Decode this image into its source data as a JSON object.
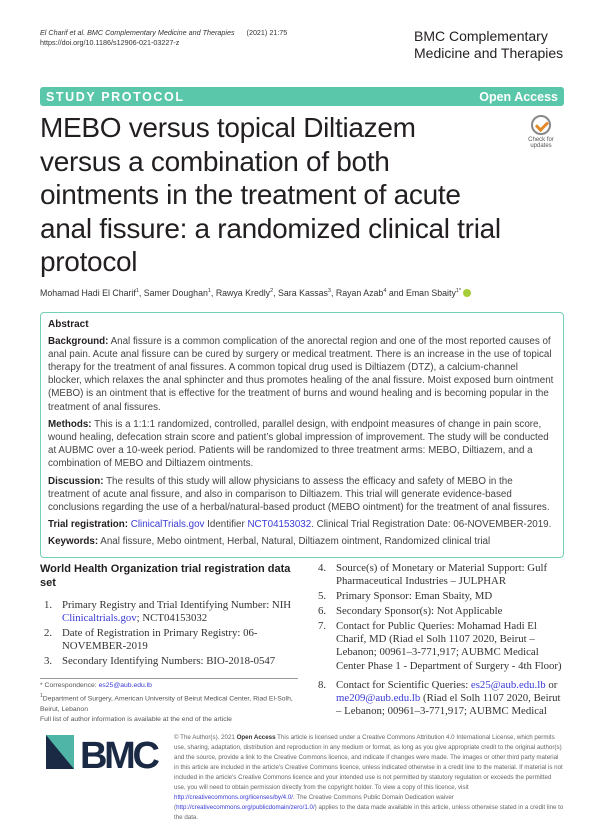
{
  "header": {
    "citation_authors": "El Charif et al.",
    "citation_journal": "BMC Complementary Medicine and Therapies",
    "citation_year": "(2021) 21:75",
    "doi": "https://doi.org/10.1186/s12906-021-03227-z",
    "journal_line1": "BMC Complementary",
    "journal_line2": "Medicine and Therapies"
  },
  "banner": {
    "type": "STUDY PROTOCOL",
    "access": "Open Access",
    "color": "#5ac7aa"
  },
  "check_updates": "Check for updates",
  "title": "MEBO versus topical Diltiazem versus a combination of both ointments in the treatment of acute anal fissure: a randomized clinical trial protocol",
  "authors": [
    {
      "name": "Mohamad Hadi El Charif",
      "aff": "1"
    },
    {
      "name": "Samer Doughan",
      "aff": "1"
    },
    {
      "name": "Rawya Kredly",
      "aff": "2"
    },
    {
      "name": "Sara Kassas",
      "aff": "3"
    },
    {
      "name": "Rayan Azab",
      "aff": "4"
    },
    {
      "name": "Eman Sbaity",
      "aff": "1*"
    }
  ],
  "authors_and": "and",
  "abstract": {
    "heading": "Abstract",
    "background_label": "Background:",
    "background": "Anal fissure is a common complication of the anorectal region and one of the most reported causes of anal pain. Acute anal fissure can be cured by surgery or medical treatment. There is an increase in the use of topical therapy for the treatment of anal fissures. A common topical drug used is Diltiazem (DTZ), a calcium-channel blocker, which relaxes the anal sphincter and thus promotes healing of the anal fissure. Moist exposed burn ointment (MEBO) is an ointment that is effective for the treatment of burns and wound healing and is becoming popular in the treatment of anal fissures.",
    "methods_label": "Methods:",
    "methods": "This is a 1:1:1 randomized, controlled, parallel design, with endpoint measures of change in pain score, wound healing, defecation strain score and patient’s global impression of improvement. The study will be conducted at AUBMC over a 10-week period. Patients will be randomized to three treatment arms: MEBO, Diltiazem, and a combination of MEBO and Diltiazem ointments.",
    "discussion_label": "Discussion:",
    "discussion": "The results of this study will allow physicians to assess the efficacy and safety of MEBO in the treatment of acute anal fissure, and also in comparison to Diltiazem. This trial will generate evidence-based conclusions regarding the use of a herbal/natural-based product (MEBO ointment) for the treatment of anal fissures.",
    "trial_label": "Trial registration:",
    "trial_link1": "ClinicalTrials.gov",
    "trial_mid": " Identifier ",
    "trial_link2": "NCT04153032",
    "trial_end": ". Clinical Trial Registration Date: 06-NOVEMBER-2019.",
    "keywords_label": "Keywords:",
    "keywords": "Anal fissure, Mebo ointment, Herbal, Natural, Diltiazem ointment, Randomized clinical trial"
  },
  "who": {
    "heading": "World Health Organization trial registration data set",
    "items": [
      {
        "n": "1.",
        "pre": "Primary Registry and Trial Identifying Number: NIH ",
        "link": "Clinicaltrials.gov",
        "post": "; NCT04153032"
      },
      {
        "n": "2.",
        "text": "Date of Registration in Primary Registry: 06-NOVEMBER-2019"
      },
      {
        "n": "3.",
        "text": "Secondary Identifying Numbers: BIO-2018-0547"
      },
      {
        "n": "4.",
        "text": "Source(s) of Monetary or Material Support: Gulf Pharmaceutical Industries – JULPHAR"
      },
      {
        "n": "5.",
        "text": "Primary Sponsor: Eman Sbaity, MD"
      },
      {
        "n": "6.",
        "text": "Secondary Sponsor(s): Not Applicable"
      },
      {
        "n": "7.",
        "text": "Contact for Public Queries: Mohamad Hadi El Charif, MD (Riad el Solh 1107 2020, Beirut – Lebanon; 00961–3-771,917; AUBMC Medical Center Phase 1 - Department of Surgery - 4th Floor)"
      },
      {
        "n": "8.",
        "pre": "Contact for Scientific Queries: ",
        "link": "es25@aub.edu.lb",
        "mid": " or ",
        "link2": "me209@aub.edu.lb",
        "post": " (Riad el Solh 1107 2020, Beirut – Lebanon; 00961–3-771,917; AUBMC Medical"
      }
    ]
  },
  "footnote": {
    "corr_label": "* Correspondence: ",
    "corr_email": "es25@aub.edu.lb",
    "aff_sup": "1",
    "affiliation": "Department of Surgery, American University of Beirut Medical Center, Riad El-Solh, Beirut, Lebanon",
    "full_list": "Full list of author information is available at the end of the article"
  },
  "logo": {
    "text": "BMC",
    "color": "#1a2a45",
    "accent": "#4fb5a6"
  },
  "license": {
    "pre": "© The Author(s). 2021 ",
    "open": "Open Access",
    "text": " This article is licensed under a Creative Commons Attribution 4.0 International License, which permits use, sharing, adaptation, distribution and reproduction in any medium or format, as long as you give appropriate credit to the original author(s) and the source, provide a link to the Creative Commons licence, and indicate if changes were made. The images or other third party material in this article are included in the article's Creative Commons licence, unless indicated otherwise in a credit line to the material. If material is not included in the article's Creative Commons licence and your intended use is not permitted by statutory regulation or exceeds the permitted use, you will need to obtain permission directly from the copyright holder. To view a copy of this licence, visit ",
    "link1": "http://creativecommons.org/licenses/by/4.0/",
    "mid": ". The Creative Commons Public Domain Dedication waiver (",
    "link2": "http://creativecommons.org/publicdomain/zero/1.0/",
    "end": ") applies to the data made available in this article, unless otherwise stated in a credit line to the data."
  }
}
